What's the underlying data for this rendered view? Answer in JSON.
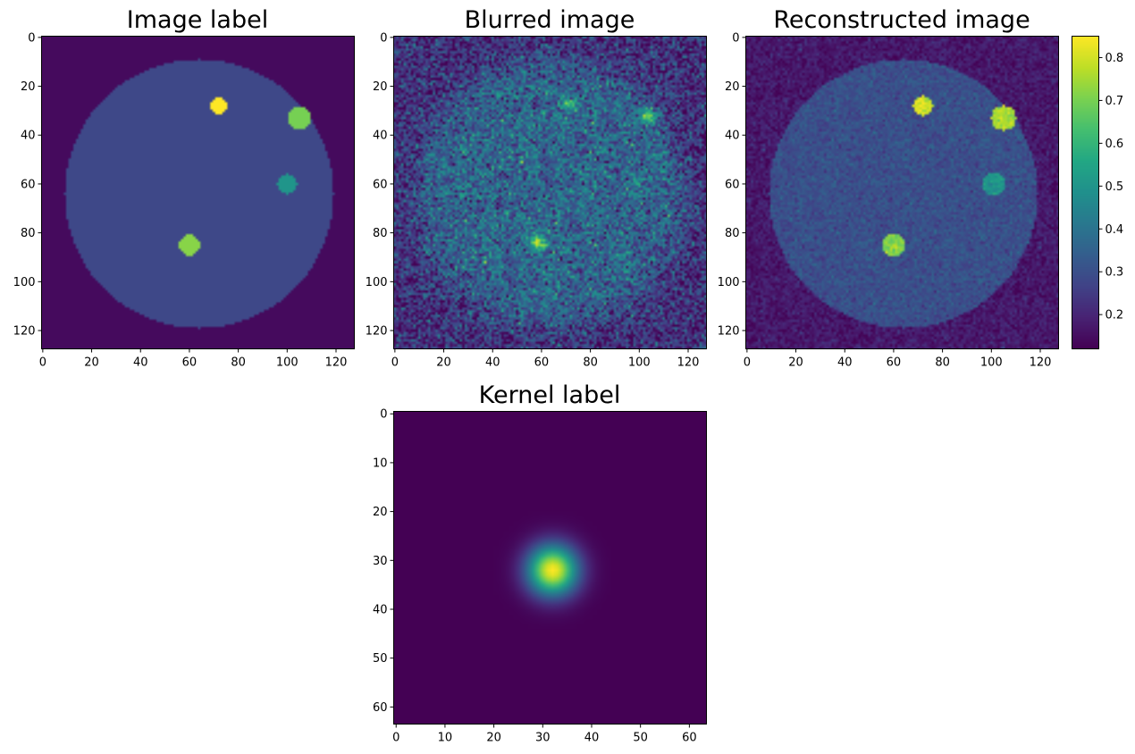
{
  "chart_data": {
    "type": "heatmap",
    "colormap": "viridis",
    "colorbar": {
      "range": [
        0.12,
        0.85
      ],
      "ticks": [
        "0.2",
        "0.3",
        "0.4",
        "0.5",
        "0.6",
        "0.7",
        "0.8"
      ],
      "tick_values": [
        0.2,
        0.3,
        0.4,
        0.5,
        0.6,
        0.7,
        0.8
      ]
    },
    "panels": [
      {
        "id": "image_label",
        "title": "Image label",
        "size": 128,
        "xticks": [
          "0",
          "20",
          "40",
          "60",
          "80",
          "100",
          "120"
        ],
        "yticks": [
          "0",
          "20",
          "40",
          "60",
          "80",
          "100",
          "120"
        ],
        "tick_values": [
          0,
          20,
          40,
          60,
          80,
          100,
          120
        ],
        "background": 0.14,
        "disc": {
          "cx": 64,
          "cy": 64,
          "r": 55,
          "value": 0.28
        },
        "spots": [
          {
            "cx": 72,
            "cy": 28,
            "r": 3.4,
            "value": 0.85
          },
          {
            "cx": 105,
            "cy": 33,
            "r": 4.5,
            "value": 0.7
          },
          {
            "cx": 100,
            "cy": 60,
            "r": 4.0,
            "value": 0.5
          },
          {
            "cx": 60,
            "cy": 85,
            "r": 4.2,
            "value": 0.72
          }
        ],
        "noise": 0,
        "blur": false
      },
      {
        "id": "blurred_image",
        "title": "Blurred image",
        "size": 128,
        "xticks": [
          "0",
          "20",
          "40",
          "60",
          "80",
          "100",
          "120"
        ],
        "yticks": [
          "0",
          "20",
          "40",
          "60",
          "80",
          "100",
          "120"
        ],
        "tick_values": [
          0,
          20,
          40,
          60,
          80,
          100,
          120
        ],
        "background": 0.22,
        "disc": {
          "cx": 64,
          "cy": 64,
          "r": 55,
          "value": 0.36
        },
        "spots": [
          {
            "cx": 71,
            "cy": 27,
            "r": 2.2,
            "value": 0.62
          },
          {
            "cx": 104,
            "cy": 32,
            "r": 2.4,
            "value": 0.72
          },
          {
            "cx": 99,
            "cy": 59,
            "r": 1.8,
            "value": 0.52
          },
          {
            "cx": 59,
            "cy": 84,
            "r": 2.4,
            "value": 0.78
          }
        ],
        "noise": 0.09,
        "blur": true
      },
      {
        "id": "reconstructed_image",
        "title": "Reconstructed image",
        "size": 128,
        "xticks": [
          "0",
          "20",
          "40",
          "60",
          "80",
          "100",
          "120"
        ],
        "yticks": [
          "0",
          "20",
          "40",
          "60",
          "80",
          "100",
          "120"
        ],
        "tick_values": [
          0,
          20,
          40,
          60,
          80,
          100,
          120
        ],
        "background": 0.17,
        "disc": {
          "cx": 64,
          "cy": 64,
          "r": 55,
          "value": 0.3
        },
        "spots": [
          {
            "cx": 72,
            "cy": 28,
            "r": 4.0,
            "value": 0.8
          },
          {
            "cx": 105,
            "cy": 33,
            "r": 5.0,
            "value": 0.76
          },
          {
            "cx": 101,
            "cy": 60,
            "r": 4.6,
            "value": 0.5
          },
          {
            "cx": 60,
            "cy": 85,
            "r": 4.6,
            "value": 0.72
          }
        ],
        "noise": 0.03,
        "blur": false
      },
      {
        "id": "kernel_label",
        "title": "Kernel label",
        "size": 64,
        "xticks": [
          "0",
          "10",
          "20",
          "30",
          "40",
          "50",
          "60"
        ],
        "yticks": [
          "0",
          "10",
          "20",
          "30",
          "40",
          "50",
          "60"
        ],
        "tick_values": [
          0,
          10,
          20,
          30,
          40,
          50,
          60
        ],
        "gaussian": {
          "cx": 32,
          "cy": 32,
          "sigma": 3.6,
          "min": 0.0,
          "max": 1.0
        }
      }
    ]
  }
}
